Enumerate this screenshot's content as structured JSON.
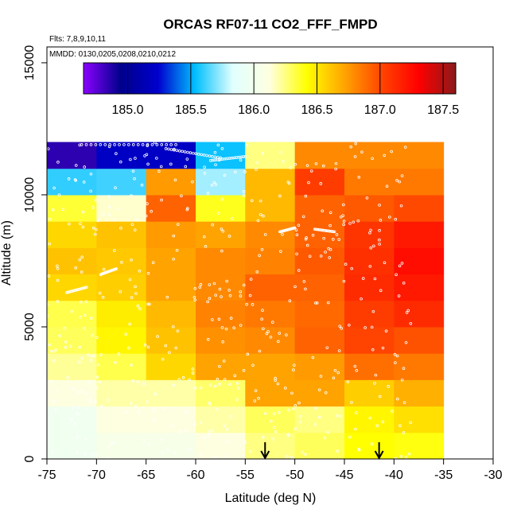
{
  "chart_data": {
    "type": "heatmap",
    "title": "ORCAS RF07-11 CO2_FFF_FMPD",
    "subtitle_flights": "Flts: 7,8,9,10,11",
    "subtitle_dates": "MMDD: 0130,0205,0208,0210,0212",
    "xlabel": "Latitude (deg N)",
    "ylabel": "Altitude (m)",
    "xlim": [
      -75,
      -30
    ],
    "ylim": [
      0,
      15600
    ],
    "x_ticks": [
      -75,
      -70,
      -65,
      -60,
      -55,
      -50,
      -45,
      -40,
      -35,
      -30
    ],
    "x_tick_labels": [
      "-75",
      "-70",
      "-65",
      "-60",
      "-55",
      "-50",
      "-45",
      "-40",
      "-35",
      "-30"
    ],
    "y_ticks": [
      0,
      5000,
      10000,
      15000
    ],
    "y_tick_labels": [
      "0",
      "5000",
      "10000",
      "15000"
    ],
    "colorbar": {
      "min": 184.65,
      "max": 187.6,
      "ticks": [
        185.0,
        185.5,
        186.0,
        186.5,
        187.0,
        187.5
      ],
      "tick_labels": [
        "185.0",
        "185.5",
        "186.0",
        "186.5",
        "187.0",
        "187.5"
      ],
      "colors": [
        "#8b00ff",
        "#00008b",
        "#0000cd",
        "#00bfff",
        "#e0ffff",
        "#ffffe0",
        "#ffff00",
        "#ffa500",
        "#ff4500",
        "#ff0000",
        "#8b1a1a"
      ]
    },
    "lat_edges": [
      -75,
      -70,
      -65,
      -60,
      -55,
      -50,
      -45,
      -40,
      -35
    ],
    "alt_edges": [
      0,
      1000,
      2000,
      3000,
      4000,
      5000,
      6000,
      7000,
      8000,
      9000,
      10000,
      11000,
      12000
    ],
    "cells": [
      [
        185.98,
        186.05,
        186.05,
        186.12,
        186.25,
        186.3,
        186.42,
        186.4
      ],
      [
        185.98,
        186.12,
        186.12,
        186.2,
        186.3,
        186.25,
        186.45,
        186.52
      ],
      [
        186.12,
        186.2,
        186.2,
        186.28,
        186.72,
        186.72,
        186.58,
        186.68
      ],
      [
        186.22,
        186.32,
        186.55,
        186.72,
        186.72,
        186.75,
        186.88,
        186.85
      ],
      [
        186.3,
        186.45,
        186.62,
        186.78,
        186.8,
        186.92,
        187.02,
        186.97
      ],
      [
        186.32,
        186.48,
        186.65,
        186.82,
        186.85,
        186.9,
        187.05,
        187.12
      ],
      [
        186.55,
        186.58,
        186.72,
        186.8,
        186.92,
        186.92,
        187.12,
        187.2
      ],
      [
        186.62,
        186.6,
        186.72,
        186.8,
        186.82,
        186.95,
        187.1,
        187.25
      ],
      [
        186.55,
        186.62,
        186.75,
        186.72,
        186.8,
        186.92,
        187.08,
        187.2
      ],
      [
        186.35,
        186.15,
        186.92,
        186.38,
        186.65,
        186.92,
        186.95,
        187.0
      ],
      [
        185.6,
        185.62,
        186.75,
        185.75,
        186.65,
        187.05,
        186.85,
        186.85
      ],
      [
        184.85,
        185.2,
        185.2,
        185.55,
        186.25,
        186.8,
        186.8,
        186.8
      ]
    ],
    "arrows_lat": [
      -53,
      -41.5
    ],
    "legend_position": "top"
  }
}
